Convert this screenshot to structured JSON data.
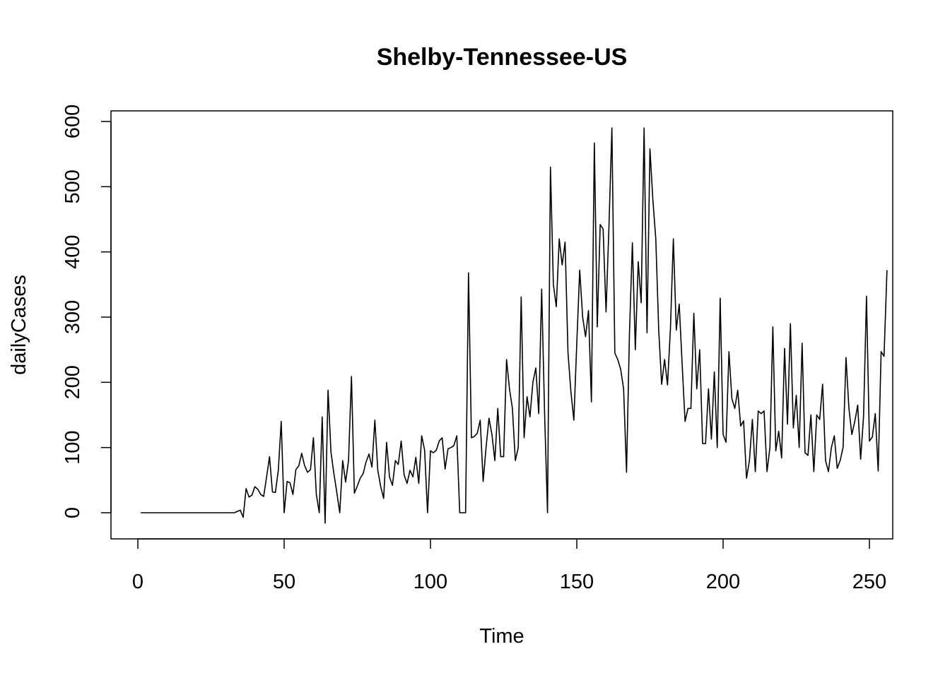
{
  "chart_data": {
    "type": "line",
    "title": "Shelby-Tennessee-US",
    "xlabel": "Time",
    "ylabel": "dailyCases",
    "xlim": [
      1,
      248
    ],
    "ylim": [
      -16,
      590
    ],
    "grid": false,
    "legend": "none",
    "x_ticks": [
      0,
      50,
      100,
      150,
      200,
      250
    ],
    "y_ticks": [
      0,
      100,
      200,
      300,
      400,
      500,
      600
    ],
    "line_color": "#000000",
    "series": [
      {
        "x_start": 1,
        "values": [
          0,
          0,
          0,
          0,
          0,
          0,
          0,
          0,
          0,
          0,
          0,
          0,
          0,
          0,
          0,
          0,
          0,
          0,
          0,
          0,
          0,
          0,
          0,
          0,
          0,
          0,
          0,
          0,
          0,
          0,
          0,
          0,
          0,
          2,
          4,
          -7,
          37,
          24,
          27,
          40,
          36,
          28,
          25,
          55,
          86,
          32,
          31,
          65,
          140,
          0,
          48,
          46,
          28,
          66,
          72,
          91,
          72,
          62,
          66,
          115,
          28,
          0,
          147,
          -16,
          188,
          93,
          60,
          31,
          0,
          80,
          47,
          80,
          209,
          30,
          41,
          53,
          60,
          78,
          90,
          70,
          142,
          65,
          40,
          22,
          108,
          55,
          42,
          80,
          74,
          110,
          58,
          45,
          65,
          55,
          85,
          45,
          118,
          96,
          0,
          95,
          92,
          96,
          110,
          115,
          67,
          98,
          100,
          103,
          118,
          0,
          0,
          0,
          368,
          115,
          117,
          122,
          142,
          48,
          100,
          145,
          120,
          80,
          160,
          86,
          86,
          235,
          190,
          160,
          80,
          100,
          331,
          115,
          178,
          147,
          200,
          222,
          152,
          343,
          152,
          0,
          530,
          350,
          316,
          420,
          380,
          415,
          245,
          185,
          142,
          260,
          372,
          300,
          270,
          310,
          170,
          567,
          285,
          442,
          435,
          308,
          440,
          590,
          245,
          235,
          220,
          190,
          62,
          275,
          414,
          250,
          385,
          322,
          590,
          276,
          558,
          480,
          420,
          280,
          197,
          235,
          196,
          282,
          420,
          280,
          320,
          228,
          140,
          160,
          160,
          306,
          190,
          250,
          106,
          106,
          190,
          113,
          216,
          100,
          329,
          120,
          108,
          247,
          175,
          160,
          188,
          133,
          141,
          53,
          80,
          143,
          63,
          156,
          152,
          156,
          63,
          100,
          285,
          95,
          125,
          84,
          252,
          136,
          290,
          130,
          180,
          100,
          260,
          92,
          88,
          150,
          63,
          150,
          143,
          197,
          80,
          63,
          100,
          118,
          68,
          80,
          100,
          238,
          160,
          120,
          140,
          165,
          82,
          148,
          332,
          110,
          116,
          152,
          64,
          247,
          240,
          372
        ]
      }
    ]
  }
}
